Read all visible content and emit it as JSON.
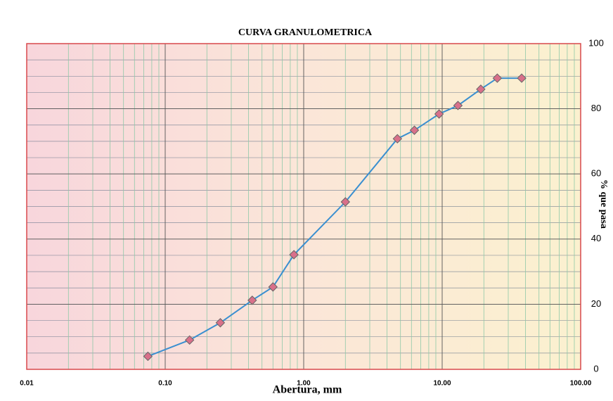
{
  "chart_data": {
    "type": "line",
    "title": "CURVA GRANULOMETRICA",
    "x_label": "Abertura, mm",
    "y_label": "% que pasa",
    "x": [
      0.075,
      0.15,
      0.25,
      0.425,
      0.6,
      0.85,
      2.0,
      4.75,
      6.3,
      9.5,
      13,
      19,
      25,
      37.5
    ],
    "values": [
      4,
      9,
      14.3,
      21.2,
      25.3,
      35.2,
      51.4,
      70.8,
      73.4,
      78.4,
      81,
      86,
      89.4,
      89.4
    ],
    "color": "#3a8fd0",
    "marker_color": "#d9708a",
    "x_log": true,
    "xlim": [
      0.01,
      100
    ],
    "xticks": [
      {
        "value": 0.01,
        "label": "0.01"
      },
      {
        "value": 0.1,
        "label": "0.10"
      },
      {
        "value": 1,
        "label": "1.00"
      },
      {
        "value": 10,
        "label": "10.00"
      },
      {
        "value": 100,
        "label": "100.00"
      }
    ],
    "ylim": [
      0,
      100
    ],
    "yticks": [
      0,
      20,
      40,
      60,
      80,
      100
    ],
    "y_axis_side": "right",
    "grid": true
  }
}
